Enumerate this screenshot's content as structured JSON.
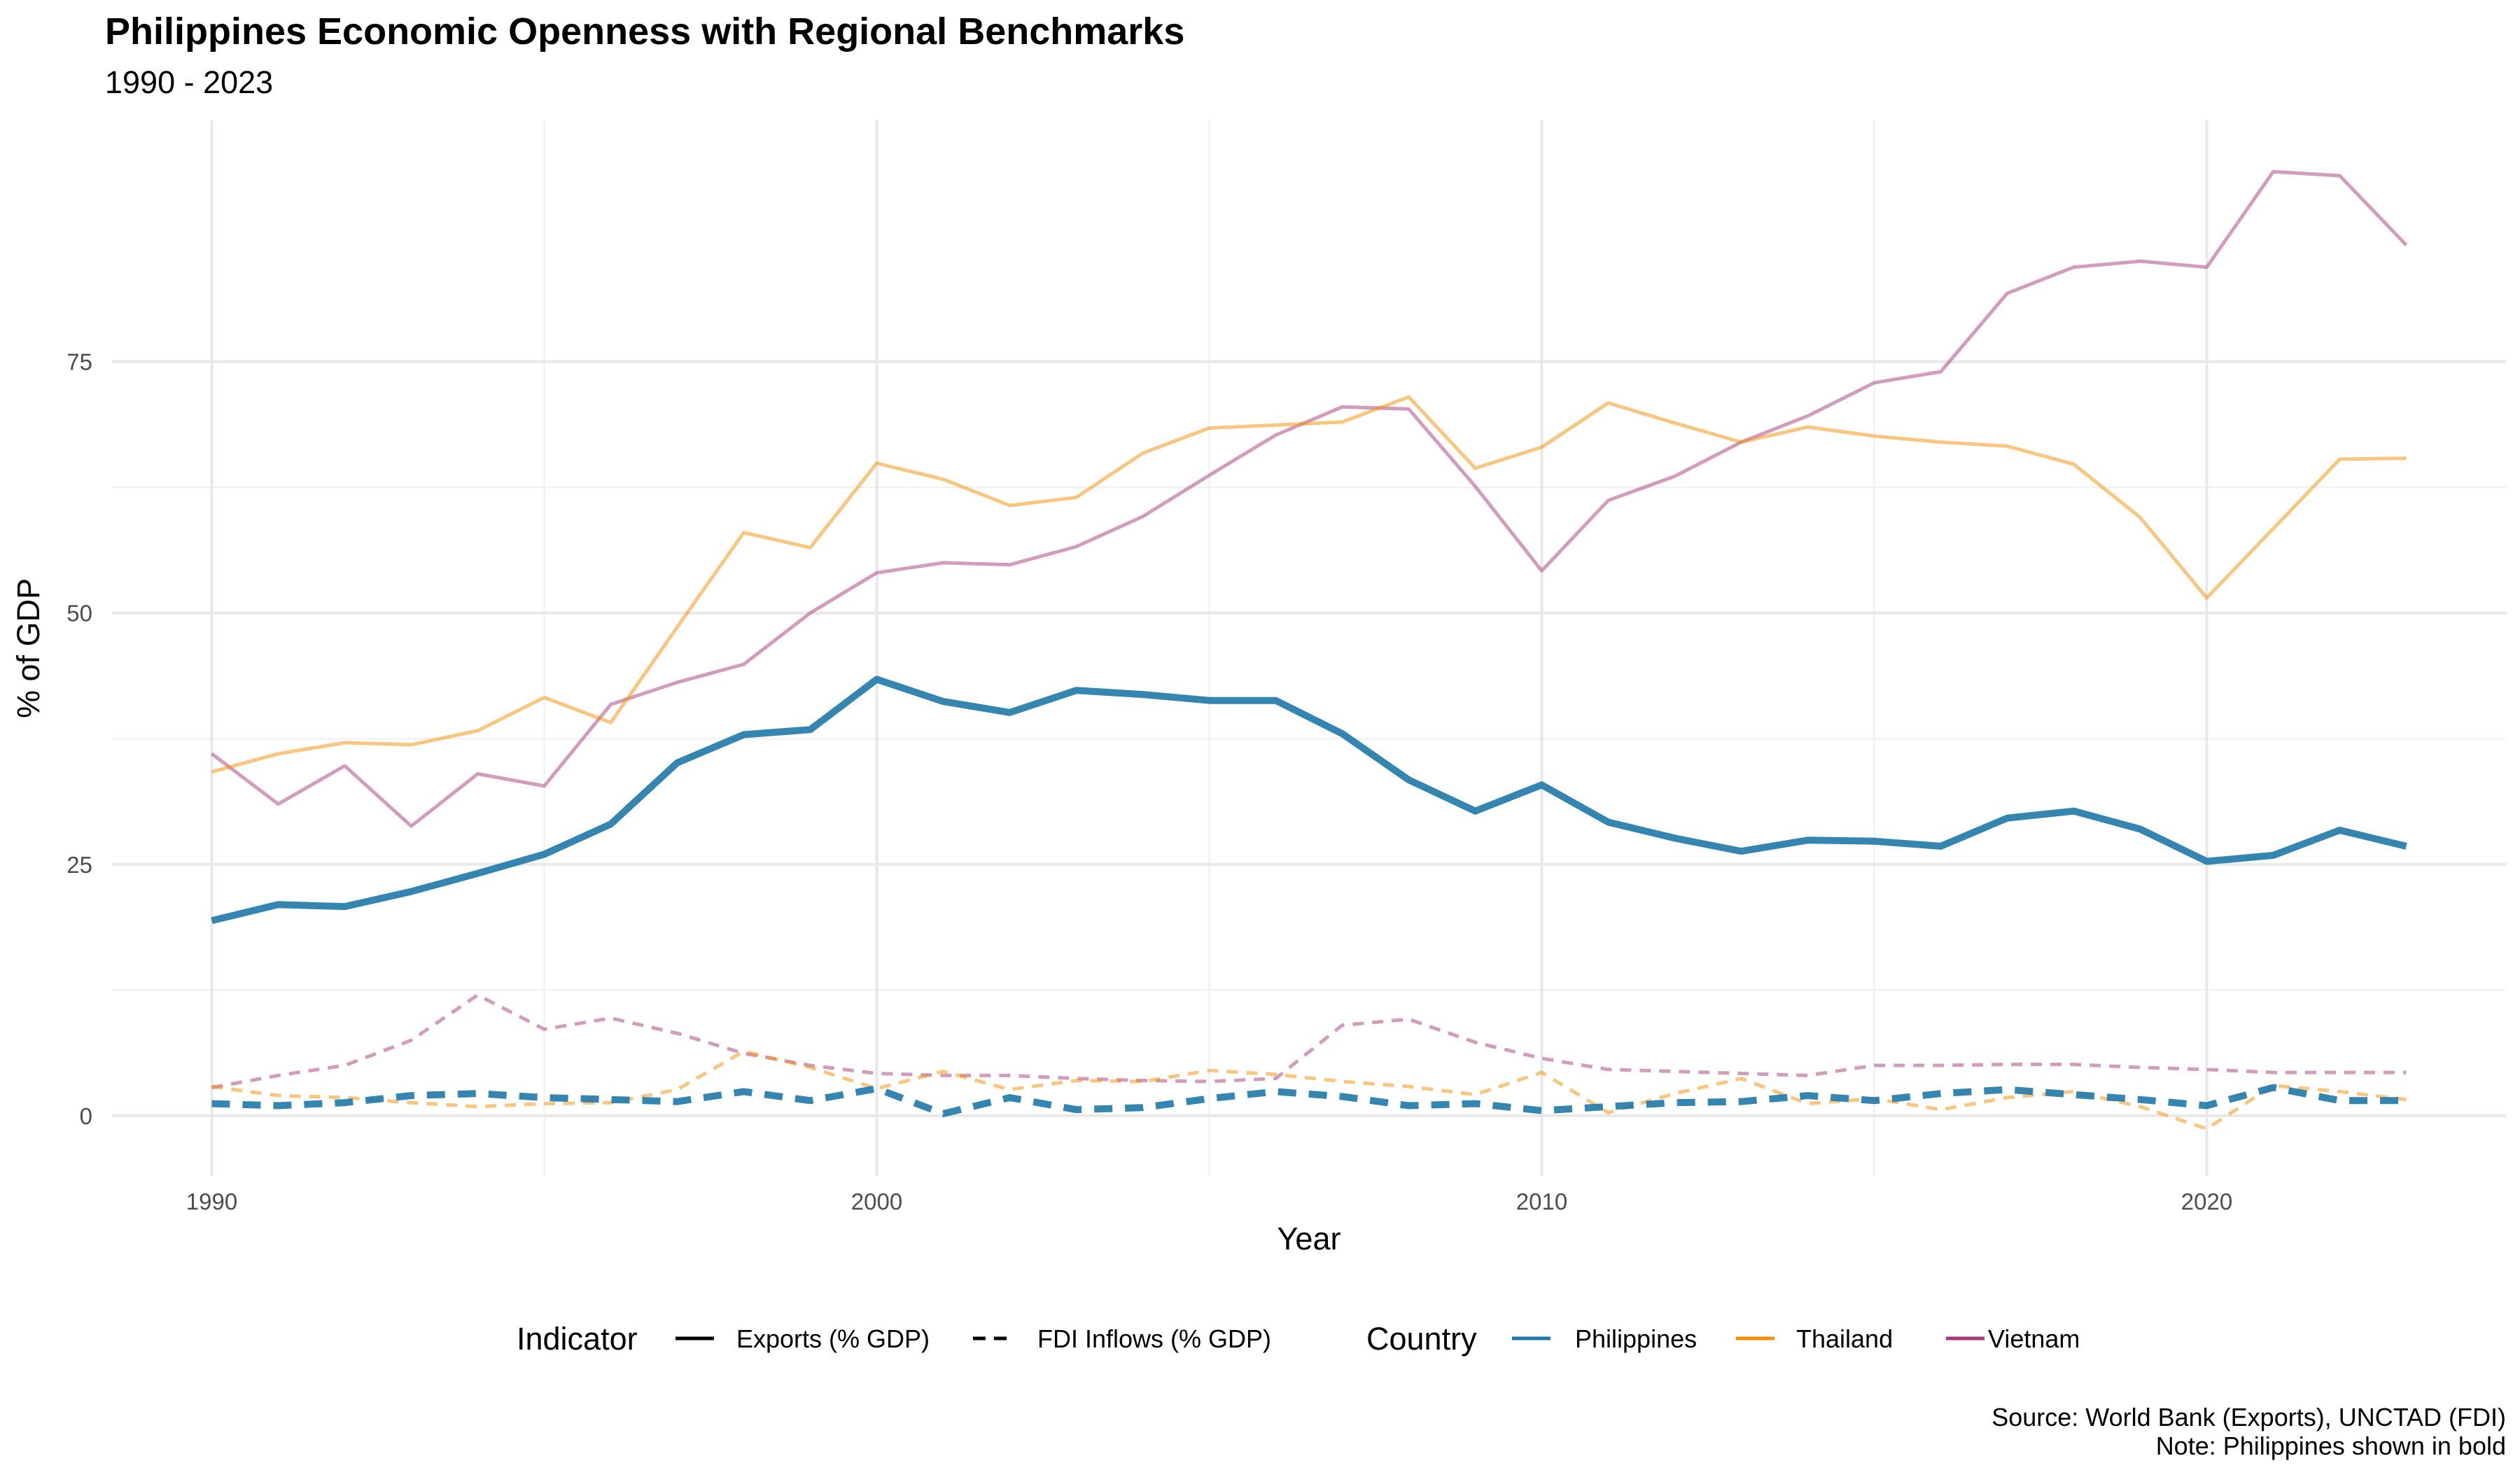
{
  "title": "Philippines Economic Openness with Regional Benchmarks",
  "subtitle": "1990 - 2023",
  "caption": {
    "line1": "Source: World Bank (Exports), UNCTAD (FDI)",
    "line2": "Note: Philippines shown in bold"
  },
  "chart_data": {
    "type": "line",
    "title": "Philippines Economic Openness with Regional Benchmarks",
    "subtitle": "1990 - 2023",
    "xlabel": "Year",
    "ylabel": "% of GDP",
    "xlim": [
      1988.5,
      2024.5
    ],
    "ylim": [
      -6,
      99
    ],
    "x_ticks": [
      1990,
      2000,
      2010,
      2020
    ],
    "y_ticks": [
      0,
      25,
      50,
      75
    ],
    "grid": true,
    "legend_position": "bottom",
    "legend": {
      "indicator_title": "Indicator",
      "indicators": [
        {
          "label": "Exports (% GDP)",
          "style": "solid"
        },
        {
          "label": "FDI Inflows (% GDP)",
          "style": "dashed"
        }
      ],
      "country_title": "Country",
      "countries": [
        {
          "label": "Philippines",
          "color": "#1f78a8"
        },
        {
          "label": "Thailand",
          "color": "#f28e00"
        },
        {
          "label": "Vietnam",
          "color": "#a63a79"
        }
      ]
    },
    "x": [
      1990,
      1991,
      1992,
      1993,
      1994,
      1995,
      1996,
      1997,
      1998,
      1999,
      2000,
      2001,
      2002,
      2003,
      2004,
      2005,
      2006,
      2007,
      2008,
      2009,
      2010,
      2011,
      2012,
      2013,
      2014,
      2015,
      2016,
      2017,
      2018,
      2019,
      2020,
      2021,
      2022,
      2023
    ],
    "series": [
      {
        "name": "Vietnam",
        "indicator": "Exports (% GDP)",
        "color": "#a63a79",
        "opacity": 0.5,
        "width": 5,
        "dash": "none",
        "values": [
          36.0,
          31.0,
          34.8,
          28.8,
          34.0,
          32.8,
          40.9,
          43.1,
          44.9,
          50.0,
          54.0,
          55.0,
          54.8,
          56.6,
          59.6,
          63.7,
          67.7,
          70.5,
          70.3,
          62.6,
          54.2,
          61.2,
          63.6,
          67.0,
          69.6,
          72.9,
          74.0,
          81.8,
          84.4,
          85.0,
          84.4,
          93.9,
          93.5,
          86.6
        ]
      },
      {
        "name": "Thailand",
        "indicator": "Exports (% GDP)",
        "color": "#f28e00",
        "opacity": 0.5,
        "width": 5,
        "dash": "none",
        "values": [
          34.2,
          36.0,
          37.1,
          36.9,
          38.3,
          41.6,
          39.1,
          48.6,
          58.0,
          56.5,
          64.9,
          63.3,
          60.7,
          61.5,
          65.9,
          68.4,
          68.7,
          69.0,
          71.5,
          64.4,
          66.5,
          70.9,
          68.9,
          67.0,
          68.5,
          67.6,
          67.0,
          66.6,
          64.8,
          59.5,
          51.5,
          58.4,
          65.3,
          65.4
        ]
      },
      {
        "name": "Vietnam",
        "indicator": "FDI Inflows (% GDP)",
        "color": "#a63a79",
        "opacity": 0.5,
        "width": 5,
        "dash": "16,12",
        "values": [
          2.8,
          4.0,
          5.0,
          7.5,
          12.0,
          8.6,
          9.7,
          8.2,
          6.2,
          5.0,
          4.2,
          4.0,
          4.0,
          3.7,
          3.5,
          3.4,
          3.7,
          9.0,
          9.6,
          7.3,
          5.7,
          4.6,
          4.4,
          4.2,
          4.0,
          5.0,
          5.0,
          5.1,
          5.1,
          4.8,
          4.6,
          4.3,
          4.3,
          4.3
        ]
      },
      {
        "name": "Thailand",
        "indicator": "FDI Inflows (% GDP)",
        "color": "#f28e00",
        "opacity": 0.5,
        "width": 5,
        "dash": "16,12",
        "values": [
          2.9,
          2.0,
          1.8,
          1.3,
          0.9,
          1.2,
          1.3,
          2.6,
          6.4,
          4.8,
          2.7,
          4.4,
          2.6,
          3.5,
          3.4,
          4.5,
          4.1,
          3.4,
          2.9,
          2.1,
          4.3,
          0.3,
          2.2,
          3.7,
          1.2,
          1.7,
          0.6,
          1.8,
          2.4,
          0.9,
          -1.3,
          3.0,
          2.4,
          1.6
        ]
      },
      {
        "name": "Philippines",
        "indicator": "FDI Inflows (% GDP)",
        "color": "#1f78a8",
        "opacity": 0.9,
        "width": 10,
        "dash": "26,18",
        "values": [
          1.2,
          1.0,
          1.3,
          2.0,
          2.2,
          1.8,
          1.6,
          1.4,
          2.4,
          1.5,
          2.7,
          0.2,
          1.8,
          0.6,
          0.8,
          1.7,
          2.4,
          1.9,
          1.0,
          1.2,
          0.5,
          0.9,
          1.3,
          1.4,
          2.0,
          1.5,
          2.2,
          2.6,
          2.1,
          1.6,
          1.0,
          2.8,
          1.5,
          1.5
        ]
      },
      {
        "name": "Philippines",
        "indicator": "Exports (% GDP)",
        "color": "#1f78a8",
        "opacity": 0.9,
        "width": 10,
        "dash": "none",
        "values": [
          19.4,
          21.0,
          20.8,
          22.3,
          24.1,
          26.0,
          29.0,
          35.1,
          37.9,
          38.4,
          43.4,
          41.2,
          40.1,
          42.3,
          41.9,
          41.3,
          41.3,
          38.0,
          33.4,
          30.3,
          32.9,
          29.2,
          27.6,
          26.3,
          27.4,
          27.3,
          26.8,
          29.6,
          30.3,
          28.5,
          25.3,
          25.9,
          28.4,
          26.8
        ]
      }
    ]
  }
}
